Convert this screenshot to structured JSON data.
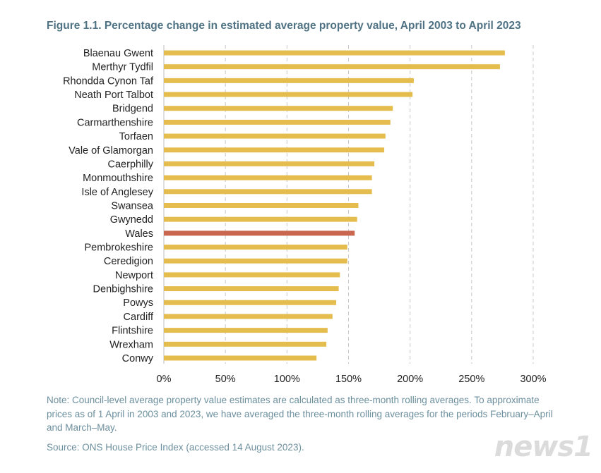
{
  "chart_data": {
    "type": "bar",
    "orientation": "horizontal",
    "title": "Figure 1.1. Percentage change in estimated average property value, April 2003 to April 2023",
    "categories": [
      "Blaenau Gwent",
      "Merthyr Tydfil",
      "Rhondda Cynon Taf",
      "Neath Port Talbot",
      "Bridgend",
      "Carmarthenshire",
      "Torfaen",
      "Vale of Glamorgan",
      "Caerphilly",
      "Monmouthshire",
      "Isle of Anglesey",
      "Swansea",
      "Gwynedd",
      "Wales",
      "Pembrokeshire",
      "Ceredigion",
      "Newport",
      "Denbighshire",
      "Powys",
      "Cardiff",
      "Flintshire",
      "Wrexham",
      "Conwy"
    ],
    "values": [
      277,
      273,
      203,
      202,
      186,
      184,
      180,
      179,
      171,
      169,
      169,
      158,
      157,
      155,
      149,
      149,
      143,
      142,
      140,
      137,
      133,
      132,
      124
    ],
    "highlight": "Wales",
    "xlim": [
      0,
      300
    ],
    "xticks": [
      0,
      50,
      100,
      150,
      200,
      250,
      300
    ],
    "xtick_labels": [
      "0%",
      "50%",
      "100%",
      "150%",
      "200%",
      "250%",
      "300%"
    ],
    "grid": "vertical dashed",
    "colors": {
      "bar": "#e5bd4e",
      "highlight": "#c9664f",
      "grid": "#c8c8c8"
    }
  },
  "note": "Note: Council-level average property value estimates are calculated as three-month rolling averages. To approximate prices as of 1 April in 2003 and 2023, we have averaged the three-month rolling averages for the periods February–April and March–May.",
  "source": "Source: ONS House Price Index (accessed 14 August 2023).",
  "watermark": "news1"
}
